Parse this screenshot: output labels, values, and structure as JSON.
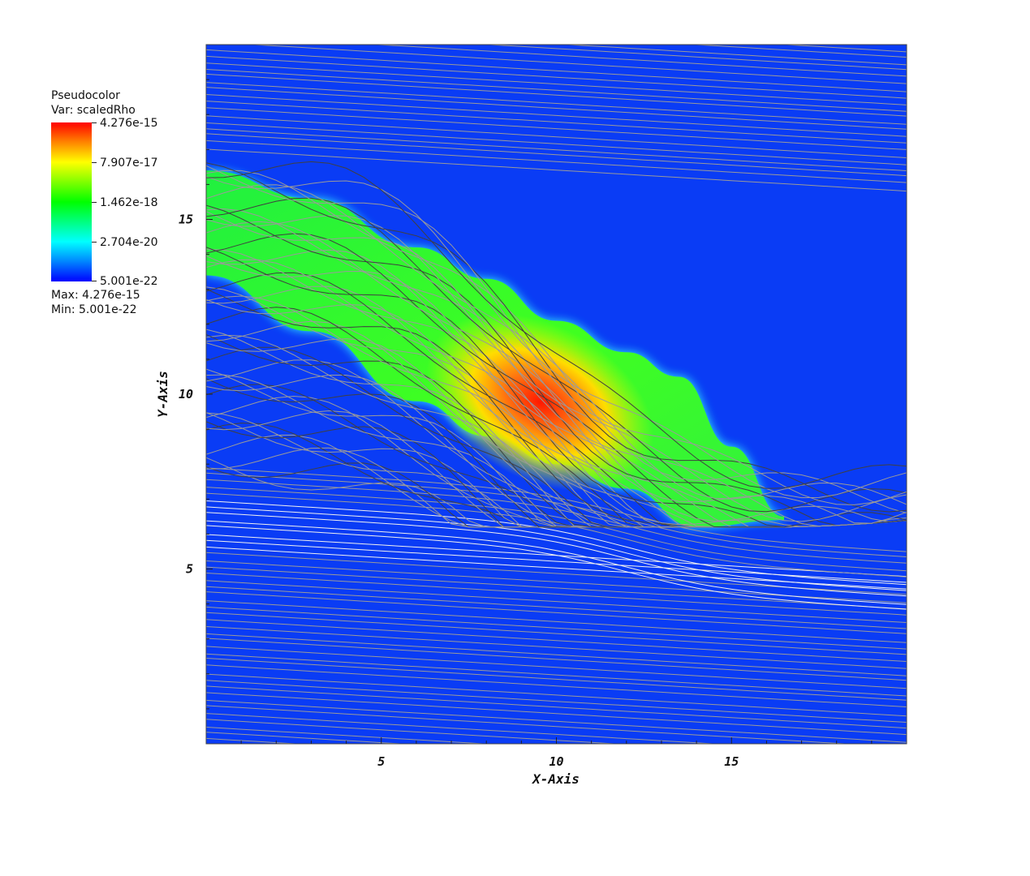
{
  "legend": {
    "plot_type": "Pseudocolor",
    "var_label": "Var: scaledRho",
    "colorbar_labels": [
      "4.276e-15",
      "7.907e-17",
      "1.462e-18",
      "2.704e-20",
      "5.001e-22"
    ],
    "max_label": "Max:  4.276e-15",
    "min_label": "Min:  5.001e-22"
  },
  "colors": {
    "background_field": "#0a3cf5",
    "streamline": "#9a9a9a",
    "streamline_dark": "#404040",
    "streamline_light": "#f0f0f0"
  },
  "chart_data": {
    "type": "heatmap",
    "title": "",
    "xlabel": "X-Axis",
    "ylabel": "Y-Axis",
    "xlim": [
      0,
      20
    ],
    "ylim": [
      0,
      20
    ],
    "x_ticks": [
      5,
      10,
      15
    ],
    "y_ticks": [
      5,
      10,
      15
    ],
    "x_tick_labels": [
      "5",
      "10",
      "15"
    ],
    "y_tick_labels": [
      "5",
      "10",
      "15"
    ],
    "colorbar": {
      "variable": "scaledRho",
      "scale": "log",
      "max": 4.276e-15,
      "min": 5.001e-22,
      "labels": [
        "4.276e-15",
        "7.907e-17",
        "1.462e-18",
        "2.704e-20",
        "5.001e-22"
      ]
    },
    "overlay": "streamlines",
    "density_band_upper_edge": [
      [
        0,
        16.4
      ],
      [
        3,
        15.6
      ],
      [
        6,
        14.2
      ],
      [
        8,
        13.3
      ],
      [
        10,
        12.1
      ],
      [
        12,
        11.2
      ],
      [
        13.5,
        10.5
      ],
      [
        15,
        8.5
      ],
      [
        16.5,
        6.5
      ]
    ],
    "density_band_lower_edge": [
      [
        0,
        13.4
      ],
      [
        3,
        11.8
      ],
      [
        6,
        9.8
      ],
      [
        8,
        8.8
      ],
      [
        10,
        8.0
      ],
      [
        12,
        7.3
      ],
      [
        14,
        6.2
      ],
      [
        16.5,
        6.4
      ]
    ],
    "peak_location": [
      10,
      10
    ]
  }
}
